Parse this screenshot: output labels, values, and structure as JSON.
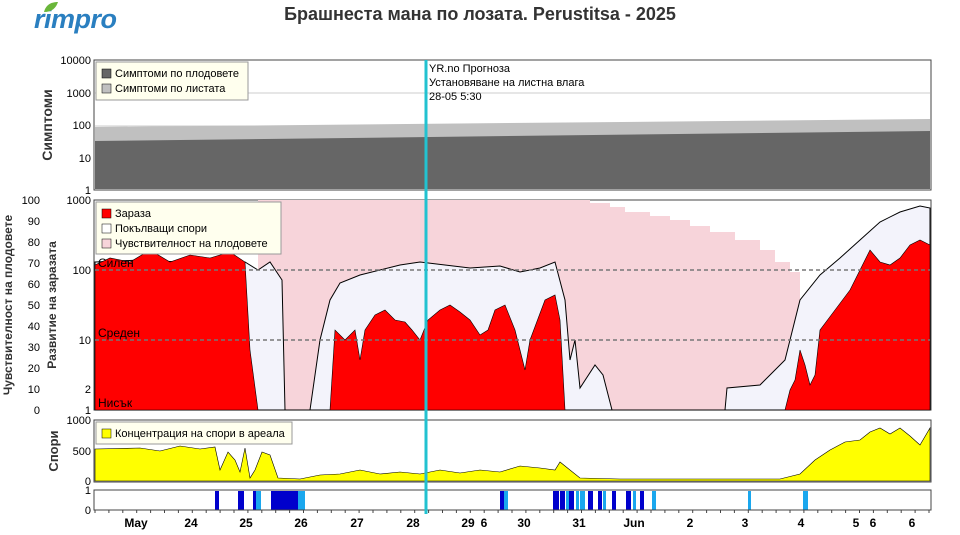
{
  "brand": {
    "name": "rimpro"
  },
  "title": "Брашнеста мана по лозата.  Perustitsa - 2025",
  "forecast": {
    "line1": "YR.no Прогноза",
    "line2": "Установяване на листна влага",
    "line3": "28-05 5:30"
  },
  "colors": {
    "accent": "#22c2d0",
    "infection": "#ff0000",
    "spores_conc": "#ffff00",
    "wetness_dark": "#0000cc",
    "wetness_light": "#1aa7ee",
    "fruit_susc": "#f7d4da"
  },
  "panels": {
    "symptoms": {
      "ylabel": "Симптоми",
      "ticks": [
        "10000",
        "1000",
        "100",
        "10",
        "1"
      ],
      "legend": [
        "Симптоми по плодовете",
        "Симптоми по листата"
      ]
    },
    "infection": {
      "ylabel_left": "Чувствителност на плодовете",
      "ylabel_right": "Развитие на заразата",
      "ticks_left": [
        "100",
        "90",
        "80",
        "70",
        "60",
        "50",
        "40",
        "30",
        "20",
        "10",
        "0"
      ],
      "ticks_right": [
        "1000",
        "100",
        "10",
        "2",
        "1"
      ],
      "levels": [
        "Силен",
        "Среден",
        "Нисък"
      ],
      "legend": [
        "Зараза",
        "Покълващи спори",
        "Чувствителност на плодовете"
      ]
    },
    "spores": {
      "ylabel": "Спори",
      "ticks": [
        "1000",
        "500",
        "0"
      ],
      "legend": [
        "Концентрация на спори в ареала"
      ]
    },
    "wetness": {
      "ticks": [
        "1",
        "0"
      ]
    }
  },
  "chart_data": {
    "type": "area",
    "x_axis": {
      "labels": [
        "May",
        "24",
        "25",
        "26",
        "27",
        "28",
        "29",
        "6",
        "30",
        "31",
        "Jun",
        "2",
        "3",
        "4",
        "5",
        "6",
        "6"
      ]
    },
    "symptoms": {
      "scale": "log",
      "ylim": [
        1,
        10000
      ],
      "series": [
        {
          "name": "Симптоми по плодовете",
          "x": [
            "23 May",
            "31 May",
            "6 Jun"
          ],
          "values": [
            32,
            48,
            65
          ]
        },
        {
          "name": "Симптоми по листата",
          "x": [
            "23 May",
            "31 May",
            "6 Jun"
          ],
          "values": [
            90,
            115,
            160
          ]
        }
      ]
    },
    "infection": {
      "scale": "log",
      "ylim": [
        1,
        1000
      ],
      "levels": {
        "Силен": 100,
        "Среден": 10,
        "Нисък": 1
      },
      "series": [
        {
          "name": "Зараза",
          "x": [
            "23 May 12:00",
            "24 May 12:00",
            "25 May 06:00",
            "27 May 12:00",
            "28 May 06:00",
            "29 May 12:00",
            "30 May 12:00",
            "5 Jun",
            "6 Jun 12:00"
          ],
          "values": [
            280,
            350,
            10,
            30,
            60,
            20,
            120,
            200,
            300
          ]
        },
        {
          "name": "Покълващи спори",
          "x": [
            "23 May 12:00",
            "25 May 06:00",
            "27 May 12:00",
            "28 May 06:00",
            "30 May 12:00",
            "4 Jun",
            "6 Jun 12:00"
          ],
          "values": [
            300,
            80,
            150,
            180,
            220,
            30,
            700
          ]
        },
        {
          "name": "Чувствителност на плодовете",
          "x": [
            "25 May 12:00",
            "31 May",
            "1 Jun",
            "2 Jun",
            "3 Jun",
            "4 Jun"
          ],
          "values": [
            100,
            100,
            95,
            85,
            78,
            68
          ]
        }
      ]
    },
    "spores": {
      "ylim": [
        0,
        1000
      ],
      "series": [
        {
          "name": "Концентрация на спори в ареала",
          "x": [
            "23 May",
            "24 May 12:00",
            "26 May",
            "28 May",
            "31 May",
            "4 Jun",
            "5 Jun",
            "6 Jun 12:00"
          ],
          "values": [
            520,
            550,
            50,
            120,
            80,
            200,
            780,
            880
          ]
        }
      ]
    }
  }
}
